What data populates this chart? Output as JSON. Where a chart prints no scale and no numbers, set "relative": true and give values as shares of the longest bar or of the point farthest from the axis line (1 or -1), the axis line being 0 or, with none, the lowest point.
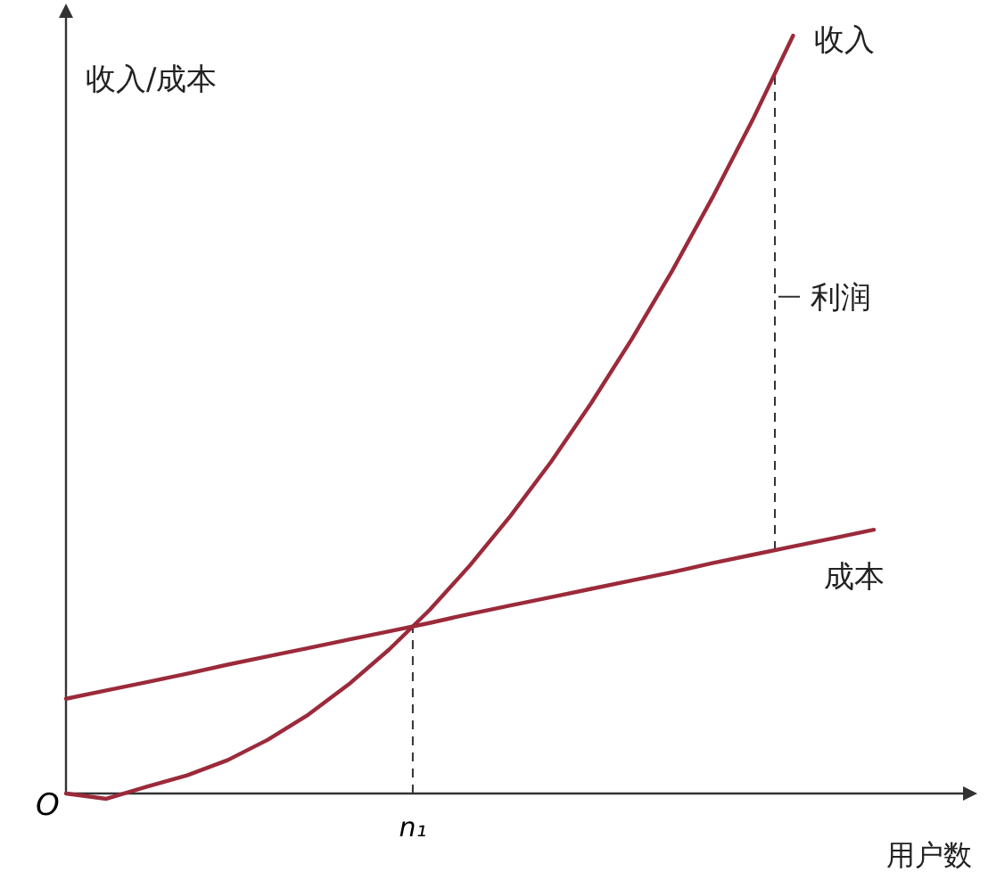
{
  "chart_data": {
    "type": "line",
    "relative": true,
    "ylabel": "收入/成本",
    "xlabel": "用户数",
    "annotations": [
      "O",
      "n₁",
      "利润"
    ],
    "categories": [
      null,
      null,
      null,
      null,
      null,
      null,
      null,
      null,
      null,
      null,
      null,
      null,
      null,
      null,
      null,
      null,
      null,
      null,
      null,
      null,
      null
    ],
    "series": [
      {
        "name": "收入",
        "color": "#9b2a3a",
        "values": [
          0,
          -0.007,
          0.009,
          0.024,
          0.044,
          0.071,
          0.104,
          0.144,
          0.19,
          0.242,
          0.301,
          0.366,
          0.437,
          0.515,
          0.599,
          0.689,
          0.786,
          0.889,
          1,
          null,
          null
        ]
      },
      {
        "name": "成本",
        "color": "#9b2a3a",
        "values": [
          0.125,
          0.136,
          0.147,
          0.158,
          0.17,
          0.181,
          0.192,
          0.203,
          0.214,
          0.225,
          0.237,
          0.248,
          0.259,
          0.27,
          0.281,
          0.292,
          0.304,
          0.315,
          0.326,
          0.337,
          0.348
        ]
      }
    ]
  }
}
